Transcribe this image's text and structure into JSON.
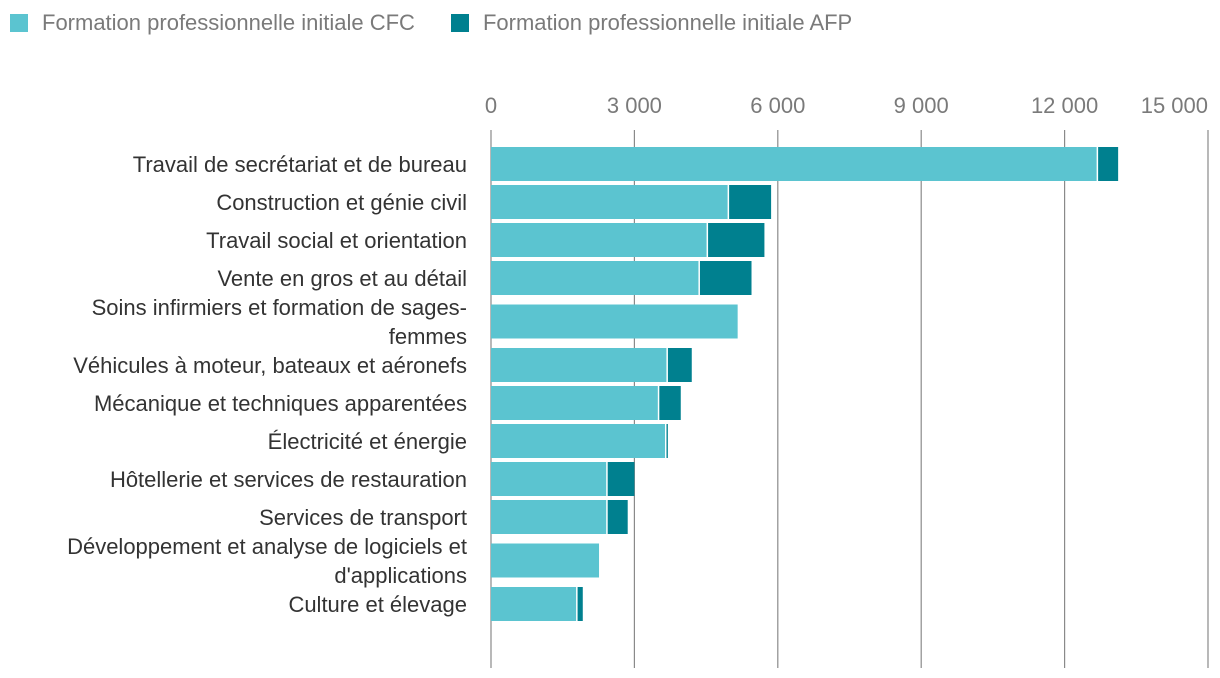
{
  "chart_data": {
    "type": "bar",
    "orientation": "horizontal",
    "stacked": true,
    "title": "",
    "xlabel": "",
    "ylabel": "",
    "xlim": [
      0,
      15000
    ],
    "xticks": [
      0,
      3000,
      6000,
      9000,
      12000,
      15000
    ],
    "xtick_labels": [
      "0",
      "3 000",
      "6 000",
      "9 000",
      "12 000",
      "15 000"
    ],
    "x_axis_position": "top",
    "grid": true,
    "legend_position": "top-left",
    "categories": [
      [
        "Travail de secrétariat et de bureau"
      ],
      [
        "Construction et génie civil"
      ],
      [
        "Travail social et orientation"
      ],
      [
        "Vente en gros et au détail"
      ],
      [
        "Soins infirmiers et formation de sages-",
        "femmes"
      ],
      [
        "Véhicules à moteur, bateaux et aéronefs"
      ],
      [
        "Mécanique et techniques apparentées"
      ],
      [
        "Électricité et énergie"
      ],
      [
        "Hôtellerie et services de restauration"
      ],
      [
        "Services de transport"
      ],
      [
        "Développement et analyse de logiciels et",
        "d'applications"
      ],
      [
        "Culture et élevage"
      ]
    ],
    "series": [
      {
        "name": "Formation professionnelle initiale CFC",
        "color": "#5bc4d0",
        "values": [
          12670,
          4950,
          4510,
          4340,
          5160,
          3670,
          3490,
          3640,
          2410,
          2410,
          2260,
          1780
        ]
      },
      {
        "name": "Formation professionnelle initiale AFP",
        "color": "#00808f",
        "values": [
          450,
          910,
          1210,
          1110,
          0,
          530,
          480,
          60,
          590,
          450,
          0,
          140
        ]
      }
    ]
  }
}
